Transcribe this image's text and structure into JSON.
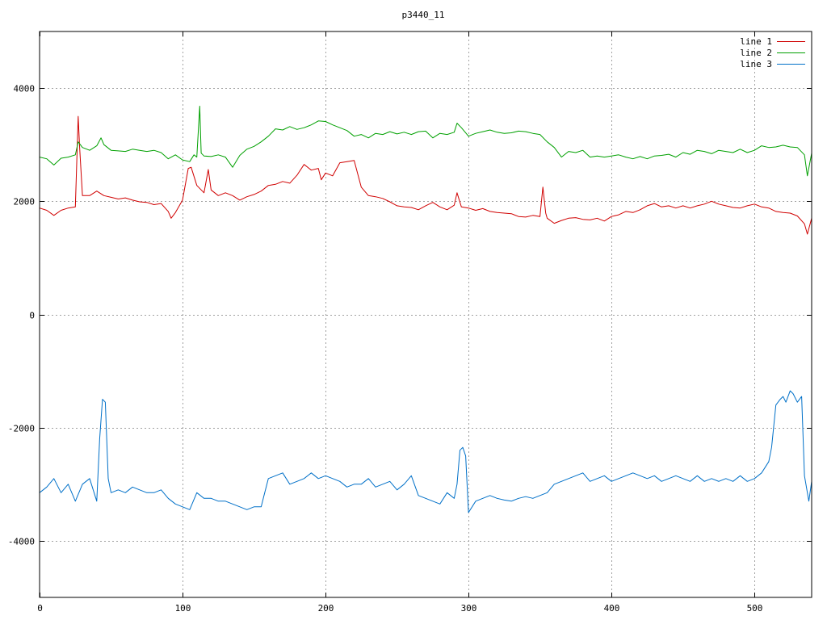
{
  "chart_data": {
    "type": "line",
    "title": "p3440_11",
    "xlabel": "",
    "ylabel": "",
    "xlim": [
      0,
      540
    ],
    "ylim": [
      -5000,
      5000
    ],
    "x_ticks": [
      0,
      100,
      200,
      300,
      400,
      500
    ],
    "y_ticks": [
      -4000,
      -2000,
      0,
      2000,
      4000
    ],
    "grid": true,
    "legend_position": "top-right",
    "series": [
      {
        "name": "line 1",
        "color": "#d00000",
        "x": [
          0,
          5,
          10,
          15,
          20,
          25,
          27,
          28,
          30,
          35,
          40,
          45,
          50,
          55,
          60,
          65,
          70,
          75,
          80,
          85,
          90,
          92,
          95,
          100,
          104,
          106,
          110,
          115,
          118,
          120,
          125,
          130,
          135,
          140,
          145,
          150,
          155,
          160,
          165,
          170,
          175,
          180,
          185,
          190,
          195,
          197,
          200,
          205,
          210,
          215,
          220,
          225,
          230,
          235,
          240,
          245,
          250,
          255,
          260,
          265,
          270,
          275,
          280,
          285,
          290,
          292,
          295,
          300,
          305,
          310,
          315,
          320,
          325,
          330,
          335,
          340,
          345,
          350,
          352,
          354,
          355,
          360,
          365,
          370,
          375,
          380,
          385,
          390,
          395,
          400,
          405,
          410,
          415,
          420,
          425,
          430,
          435,
          440,
          445,
          450,
          455,
          460,
          465,
          470,
          475,
          480,
          485,
          490,
          495,
          500,
          505,
          510,
          515,
          520,
          525,
          530,
          535,
          537,
          540
        ],
        "y": [
          1880,
          1840,
          1750,
          1840,
          1880,
          1900,
          3500,
          2950,
          2100,
          2100,
          2180,
          2100,
          2070,
          2040,
          2060,
          2020,
          1990,
          1980,
          1940,
          1960,
          1820,
          1700,
          1800,
          2020,
          2580,
          2600,
          2280,
          2150,
          2560,
          2200,
          2100,
          2150,
          2100,
          2020,
          2080,
          2120,
          2180,
          2280,
          2300,
          2350,
          2320,
          2460,
          2650,
          2550,
          2580,
          2380,
          2500,
          2450,
          2680,
          2700,
          2720,
          2250,
          2100,
          2080,
          2050,
          1990,
          1920,
          1900,
          1890,
          1850,
          1920,
          1980,
          1900,
          1850,
          1930,
          2150,
          1900,
          1880,
          1840,
          1870,
          1820,
          1800,
          1790,
          1780,
          1730,
          1720,
          1750,
          1730,
          2250,
          1790,
          1700,
          1610,
          1660,
          1700,
          1710,
          1680,
          1670,
          1700,
          1650,
          1730,
          1760,
          1820,
          1800,
          1850,
          1920,
          1960,
          1900,
          1920,
          1880,
          1920,
          1880,
          1920,
          1950,
          2000,
          1950,
          1920,
          1890,
          1880,
          1920,
          1950,
          1900,
          1880,
          1820,
          1800,
          1790,
          1740,
          1600,
          1420,
          1700
        ]
      },
      {
        "name": "line 2",
        "color": "#00a000",
        "x": [
          0,
          5,
          10,
          15,
          20,
          25,
          27,
          30,
          35,
          40,
          43,
          45,
          50,
          55,
          60,
          65,
          70,
          75,
          80,
          85,
          90,
          95,
          100,
          105,
          108,
          110,
          112,
          113,
          115,
          120,
          125,
          130,
          135,
          140,
          145,
          150,
          155,
          160,
          165,
          170,
          175,
          180,
          185,
          190,
          195,
          200,
          205,
          210,
          215,
          220,
          225,
          230,
          235,
          240,
          245,
          250,
          255,
          260,
          265,
          270,
          275,
          280,
          285,
          290,
          292,
          295,
          300,
          305,
          310,
          315,
          320,
          325,
          330,
          335,
          340,
          345,
          350,
          355,
          360,
          365,
          370,
          375,
          380,
          385,
          390,
          395,
          400,
          405,
          410,
          415,
          420,
          425,
          430,
          435,
          440,
          445,
          450,
          455,
          460,
          465,
          470,
          475,
          480,
          485,
          490,
          495,
          500,
          505,
          510,
          515,
          520,
          525,
          530,
          535,
          537,
          540
        ],
        "y": [
          2780,
          2750,
          2640,
          2760,
          2780,
          2820,
          3050,
          2950,
          2900,
          2980,
          3120,
          3000,
          2900,
          2890,
          2880,
          2920,
          2900,
          2880,
          2900,
          2860,
          2750,
          2820,
          2730,
          2700,
          2820,
          2780,
          3680,
          2850,
          2800,
          2790,
          2820,
          2780,
          2600,
          2810,
          2920,
          2970,
          3050,
          3150,
          3280,
          3260,
          3320,
          3270,
          3300,
          3350,
          3420,
          3410,
          3350,
          3300,
          3250,
          3150,
          3180,
          3120,
          3200,
          3180,
          3230,
          3190,
          3220,
          3180,
          3230,
          3240,
          3120,
          3200,
          3180,
          3220,
          3380,
          3300,
          3150,
          3200,
          3230,
          3260,
          3220,
          3200,
          3210,
          3240,
          3230,
          3200,
          3180,
          3050,
          2950,
          2780,
          2880,
          2860,
          2900,
          2780,
          2800,
          2780,
          2800,
          2820,
          2780,
          2750,
          2790,
          2750,
          2800,
          2810,
          2830,
          2780,
          2860,
          2830,
          2900,
          2880,
          2840,
          2900,
          2880,
          2860,
          2920,
          2860,
          2900,
          2980,
          2950,
          2960,
          2990,
          2960,
          2950,
          2820,
          2450,
          2850
        ]
      },
      {
        "name": "line 3",
        "color": "#0070c8",
        "x": [
          0,
          5,
          10,
          15,
          20,
          25,
          30,
          35,
          40,
          42,
          44,
          46,
          48,
          50,
          55,
          60,
          65,
          70,
          75,
          80,
          85,
          90,
          95,
          100,
          105,
          110,
          115,
          120,
          125,
          130,
          135,
          140,
          145,
          150,
          155,
          157,
          160,
          165,
          170,
          175,
          180,
          185,
          190,
          195,
          200,
          205,
          210,
          215,
          220,
          225,
          230,
          235,
          240,
          245,
          250,
          255,
          260,
          265,
          270,
          275,
          280,
          285,
          290,
          292,
          294,
          296,
          298,
          300,
          305,
          310,
          315,
          320,
          325,
          330,
          335,
          340,
          345,
          350,
          355,
          360,
          365,
          370,
          375,
          380,
          385,
          390,
          395,
          400,
          405,
          410,
          415,
          420,
          425,
          430,
          435,
          440,
          445,
          450,
          455,
          460,
          465,
          470,
          475,
          480,
          485,
          490,
          495,
          500,
          505,
          510,
          512,
          515,
          518,
          520,
          522,
          525,
          527,
          530,
          533,
          535,
          538,
          540
        ],
        "y": [
          -3150,
          -3050,
          -2900,
          -3150,
          -3000,
          -3300,
          -3000,
          -2900,
          -3300,
          -2200,
          -1500,
          -1550,
          -2900,
          -3150,
          -3100,
          -3150,
          -3050,
          -3100,
          -3150,
          -3150,
          -3100,
          -3250,
          -3350,
          -3400,
          -3450,
          -3150,
          -3250,
          -3250,
          -3300,
          -3300,
          -3350,
          -3400,
          -3450,
          -3400,
          -3400,
          -3200,
          -2900,
          -2850,
          -2800,
          -3000,
          -2950,
          -2900,
          -2800,
          -2900,
          -2850,
          -2900,
          -2950,
          -3050,
          -3000,
          -3000,
          -2900,
          -3050,
          -3000,
          -2950,
          -3100,
          -3000,
          -2850,
          -3200,
          -3250,
          -3300,
          -3350,
          -3150,
          -3250,
          -3000,
          -2400,
          -2350,
          -2500,
          -3500,
          -3300,
          -3250,
          -3200,
          -3250,
          -3280,
          -3300,
          -3250,
          -3220,
          -3250,
          -3200,
          -3150,
          -3000,
          -2950,
          -2900,
          -2850,
          -2800,
          -2950,
          -2900,
          -2850,
          -2950,
          -2900,
          -2850,
          -2800,
          -2850,
          -2900,
          -2850,
          -2950,
          -2900,
          -2850,
          -2900,
          -2950,
          -2850,
          -2950,
          -2900,
          -2950,
          -2900,
          -2950,
          -2850,
          -2950,
          -2900,
          -2800,
          -2600,
          -2350,
          -1600,
          -1500,
          -1450,
          -1550,
          -1350,
          -1400,
          -1550,
          -1450,
          -2850,
          -3300,
          -2950
        ]
      }
    ]
  }
}
